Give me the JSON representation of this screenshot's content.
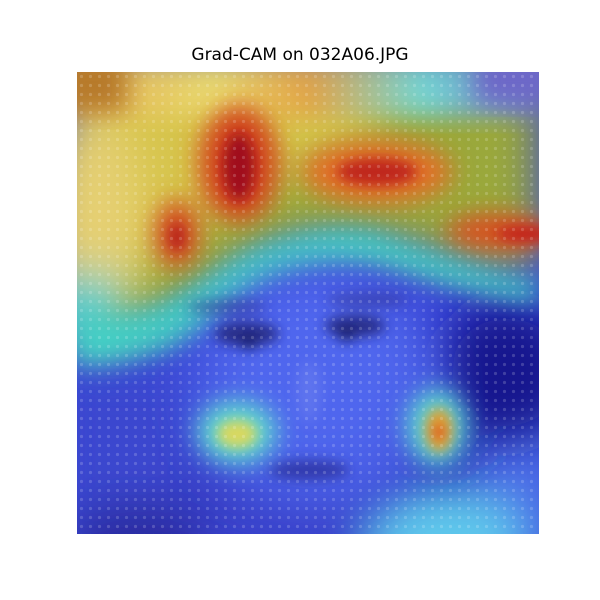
{
  "figure": {
    "title": "Grad-CAM on 032A06.JPG"
  },
  "image": {
    "subject": "grayscale child face photo with Grad-CAM heatmap overlay",
    "colormap": "jet",
    "colors": {
      "hot_red": "#c8141e",
      "orange": "#e27a22",
      "yellow": "#e8d850",
      "olive": "#8fa33a",
      "cyan": "#4fd6e6",
      "blue": "#4a5ae0",
      "navy": "#1b1a9a",
      "brown_corner": "#b77a2a"
    }
  }
}
